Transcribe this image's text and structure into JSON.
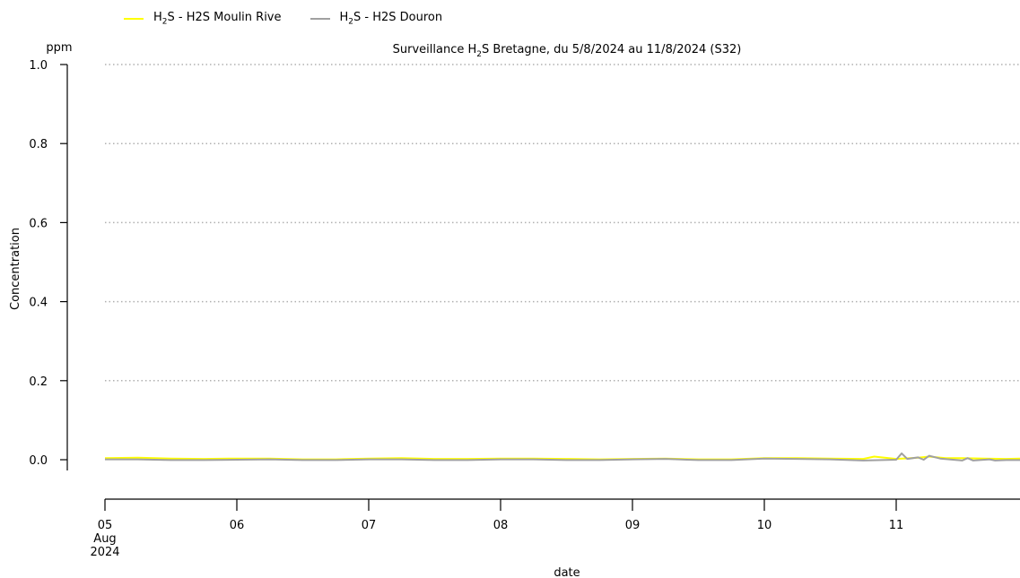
{
  "chart_data": {
    "type": "line",
    "title_prefix": "Surveillance H",
    "title_sub": "2",
    "title_suffix": "S Bretagne, du 5/8/2024 au 11/8/2024 (S32)",
    "ylabel": "Concentration",
    "yunit": "ppm",
    "xlabel": "date",
    "ylim": [
      0.0,
      1.0
    ],
    "yticks": [
      "0.0",
      "0.2",
      "0.4",
      "0.6",
      "0.8",
      "1.0"
    ],
    "xlim": [
      "2024-08-05T00:00",
      "2024-08-11T23:00"
    ],
    "xticks": [
      {
        "date": "2024-08-05",
        "label": "05",
        "sub1": "Aug",
        "sub2": "2024"
      },
      {
        "date": "2024-08-06",
        "label": "06"
      },
      {
        "date": "2024-08-07",
        "label": "07"
      },
      {
        "date": "2024-08-08",
        "label": "08"
      },
      {
        "date": "2024-08-09",
        "label": "09"
      },
      {
        "date": "2024-08-10",
        "label": "10"
      },
      {
        "date": "2024-08-11",
        "label": "11"
      }
    ],
    "grid": "horizontal-dotted",
    "legend_position": "top-left",
    "series": [
      {
        "name_prefix": "H",
        "name_sub": "2",
        "name_suffix": "S - H2S Moulin Rive",
        "color": "#ffff00",
        "x": [
          "2024-08-05T00:00",
          "2024-08-05T06:00",
          "2024-08-05T12:00",
          "2024-08-05T18:00",
          "2024-08-06T00:00",
          "2024-08-06T06:00",
          "2024-08-06T12:00",
          "2024-08-06T18:00",
          "2024-08-07T00:00",
          "2024-08-07T06:00",
          "2024-08-07T12:00",
          "2024-08-07T18:00",
          "2024-08-08T00:00",
          "2024-08-08T06:00",
          "2024-08-08T12:00",
          "2024-08-08T18:00",
          "2024-08-09T00:00",
          "2024-08-09T06:00",
          "2024-08-09T12:00",
          "2024-08-09T18:00",
          "2024-08-10T00:00",
          "2024-08-10T06:00",
          "2024-08-10T12:00",
          "2024-08-10T18:00",
          "2024-08-10T20:00",
          "2024-08-11T00:00",
          "2024-08-11T04:00",
          "2024-08-11T06:00",
          "2024-08-11T09:00",
          "2024-08-11T12:00",
          "2024-08-11T16:00",
          "2024-08-11T20:00",
          "2024-08-11T23:00"
        ],
        "y": [
          0.004,
          0.005,
          0.003,
          0.002,
          0.003,
          0.003,
          0.001,
          0.001,
          0.003,
          0.004,
          0.002,
          0.002,
          0.003,
          0.003,
          0.002,
          0.001,
          0.002,
          0.003,
          0.001,
          0.001,
          0.004,
          0.004,
          0.003,
          0.002,
          0.008,
          0.002,
          0.005,
          0.008,
          0.004,
          0.004,
          0.003,
          0.002,
          0.003
        ]
      },
      {
        "name_prefix": "H",
        "name_sub": "2",
        "name_suffix": "S - H2S Douron",
        "color": "#a0a0a0",
        "x": [
          "2024-08-05T00:00",
          "2024-08-05T06:00",
          "2024-08-05T12:00",
          "2024-08-05T18:00",
          "2024-08-06T00:00",
          "2024-08-06T06:00",
          "2024-08-06T12:00",
          "2024-08-06T18:00",
          "2024-08-07T00:00",
          "2024-08-07T06:00",
          "2024-08-07T12:00",
          "2024-08-07T18:00",
          "2024-08-08T00:00",
          "2024-08-08T06:00",
          "2024-08-08T12:00",
          "2024-08-08T18:00",
          "2024-08-09T00:00",
          "2024-08-09T06:00",
          "2024-08-09T12:00",
          "2024-08-09T18:00",
          "2024-08-10T00:00",
          "2024-08-10T06:00",
          "2024-08-10T12:00",
          "2024-08-10T18:00",
          "2024-08-11T00:00",
          "2024-08-11T01:00",
          "2024-08-11T02:00",
          "2024-08-11T04:00",
          "2024-08-11T05:00",
          "2024-08-11T06:00",
          "2024-08-11T08:00",
          "2024-08-11T12:00",
          "2024-08-11T13:00",
          "2024-08-11T14:00",
          "2024-08-11T17:00",
          "2024-08-11T18:00",
          "2024-08-11T20:00",
          "2024-08-11T23:00"
        ],
        "y": [
          0.001,
          0.001,
          -0.001,
          -0.001,
          0.0,
          0.001,
          -0.001,
          -0.001,
          0.001,
          0.001,
          -0.001,
          -0.001,
          0.001,
          0.001,
          -0.001,
          -0.001,
          0.001,
          0.002,
          -0.001,
          -0.001,
          0.003,
          0.002,
          0.001,
          -0.002,
          0.0,
          0.016,
          0.002,
          0.006,
          0.0,
          0.01,
          0.003,
          -0.002,
          0.004,
          -0.002,
          0.001,
          -0.002,
          -0.001,
          -0.001
        ]
      }
    ]
  }
}
